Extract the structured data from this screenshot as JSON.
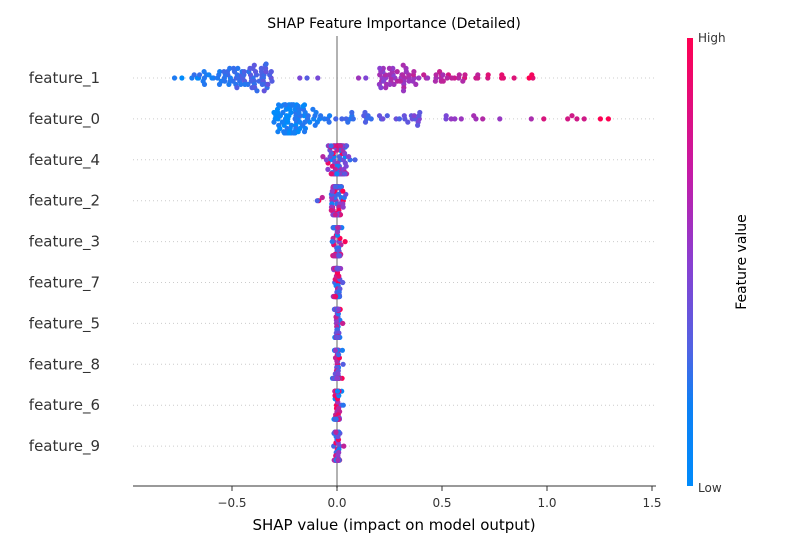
{
  "chart_data": {
    "type": "scatter",
    "title": "SHAP Feature Importance (Detailed)",
    "xlabel": "SHAP value (impact on model output)",
    "xlim": [
      -1.0,
      1.5
    ],
    "xticks": [
      -0.5,
      0.0,
      0.5,
      1.0,
      1.5
    ],
    "xtick_labels": [
      "−0.5",
      "0.0",
      "0.5",
      "1.0",
      "1.5"
    ],
    "colorbar": {
      "label": "Feature value",
      "high": "High",
      "low": "Low",
      "low_color": "#008bfb",
      "high_color": "#ff0052"
    },
    "features": [
      {
        "name": "feature_1",
        "min": -0.87,
        "max": 1.06,
        "center": 0.0,
        "split": true,
        "spread": 0.9,
        "count": 170
      },
      {
        "name": "feature_0",
        "min": -0.3,
        "max": 1.38,
        "center": -0.22,
        "split": false,
        "spread": 0.7,
        "count": 150
      },
      {
        "name": "feature_4",
        "min": -0.09,
        "max": 0.1,
        "center": 0.0,
        "split": false,
        "spread": 0.05,
        "count": 110
      },
      {
        "name": "feature_2",
        "min": -0.11,
        "max": 0.08,
        "center": 0.0,
        "split": false,
        "spread": 0.03,
        "count": 90
      },
      {
        "name": "feature_3",
        "min": -0.05,
        "max": 0.09,
        "center": 0.0,
        "split": false,
        "spread": 0.02,
        "count": 90
      },
      {
        "name": "feature_7",
        "min": -0.03,
        "max": 0.05,
        "center": 0.0,
        "split": false,
        "spread": 0.015,
        "count": 80
      },
      {
        "name": "feature_5",
        "min": -0.03,
        "max": 0.03,
        "center": 0.0,
        "split": false,
        "spread": 0.012,
        "count": 80
      },
      {
        "name": "feature_8",
        "min": -0.03,
        "max": 0.03,
        "center": 0.0,
        "split": false,
        "spread": 0.012,
        "count": 80
      },
      {
        "name": "feature_6",
        "min": -0.03,
        "max": 0.03,
        "center": 0.0,
        "split": false,
        "spread": 0.012,
        "count": 80
      },
      {
        "name": "feature_9",
        "min": -0.03,
        "max": 0.04,
        "center": 0.0,
        "split": false,
        "spread": 0.012,
        "count": 80
      }
    ]
  }
}
